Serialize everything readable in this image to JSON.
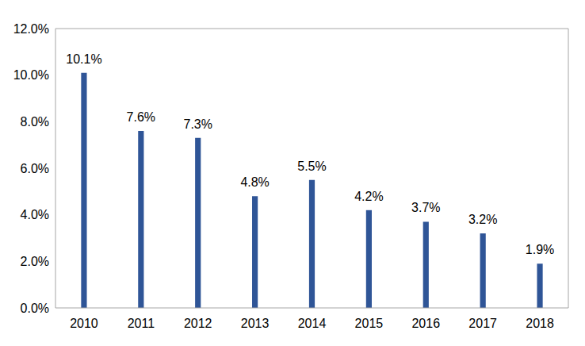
{
  "chart_data": {
    "type": "bar",
    "categories": [
      "2010",
      "2011",
      "2012",
      "2013",
      "2014",
      "2015",
      "2016",
      "2017",
      "2018"
    ],
    "values": [
      10.1,
      7.6,
      7.3,
      4.8,
      5.5,
      4.2,
      3.7,
      3.2,
      1.9
    ],
    "value_labels": [
      "10.1%",
      "7.6%",
      "7.3%",
      "4.8%",
      "5.5%",
      "4.2%",
      "3.7%",
      "3.2%",
      "1.9%"
    ],
    "color": "#2f5597",
    "ylim": [
      0,
      12
    ],
    "yticks": [
      {
        "value": 0,
        "label": "0.0%"
      },
      {
        "value": 2,
        "label": "2.0%"
      },
      {
        "value": 4,
        "label": "4.0%"
      },
      {
        "value": 6,
        "label": "6.0%"
      },
      {
        "value": 8,
        "label": "8.0%"
      },
      {
        "value": 10,
        "label": "10.0%"
      },
      {
        "value": 12,
        "label": "12.0%"
      }
    ],
    "grid": false,
    "data_labels": true
  }
}
